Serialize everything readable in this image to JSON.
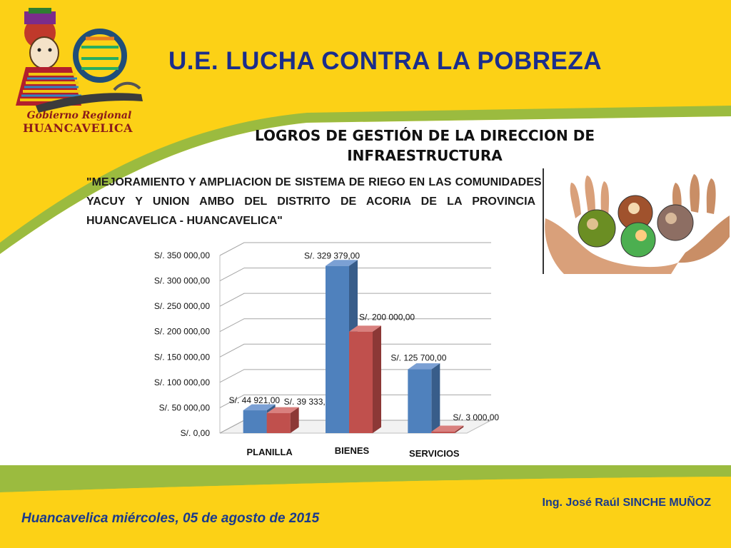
{
  "header": {
    "title": "U.E. LUCHA CONTRA LA POBREZA"
  },
  "logo": {
    "line1": "Gobierno Regional",
    "line2": "HUANCAVELICA"
  },
  "slide": {
    "subtitle": "LOGROS DE GESTIÓN DE LA DIRECCION DE INFRAESTRUCTURA",
    "project": "\"MEJORAMIENTO Y AMPLIACION DE SISTEMA DE RIEGO EN LAS COMUNIDADES DE YACUY Y UNION AMBO DEL DISTRITO DE ACORIA DE LA PROVINCIA DE HUANCAVELICA - HUANCAVELICA\""
  },
  "footer": {
    "author": "Ing. José Raúl SINCHE MUÑOZ",
    "date": "Huancavelica miércoles, 05 de agosto de 2015"
  },
  "colors": {
    "background": "#fcd116",
    "title": "#1a2d8c",
    "series_blue": "#4f81bd",
    "series_red": "#c0504d",
    "stripe_green": "#9bbb3f"
  },
  "chart_data": {
    "type": "bar",
    "categories": [
      "PLANILLA",
      "BIENES",
      "SERVICIOS"
    ],
    "series": [
      {
        "values": [
          44921.0,
          329379.0,
          125700.0
        ],
        "labels": [
          "S/. 44 921,00",
          "S/. 329 379,00",
          "S/. 125 700,00"
        ]
      },
      {
        "values": [
          39333.96,
          200000.0,
          3000.0
        ],
        "labels": [
          "S/. 39 333,96",
          "S/. 200 000,00",
          "S/. 3 000,00"
        ]
      }
    ],
    "yticks": [
      "S/. 0,00",
      "S/. 50 000,00",
      "S/. 100 000,00",
      "S/. 150 000,00",
      "S/. 200 000,00",
      "S/. 250 000,00",
      "S/. 300 000,00",
      "S/. 350 000,00"
    ],
    "ylim": [
      0,
      350000
    ],
    "grid": true,
    "style": "3d-clustered-column"
  }
}
